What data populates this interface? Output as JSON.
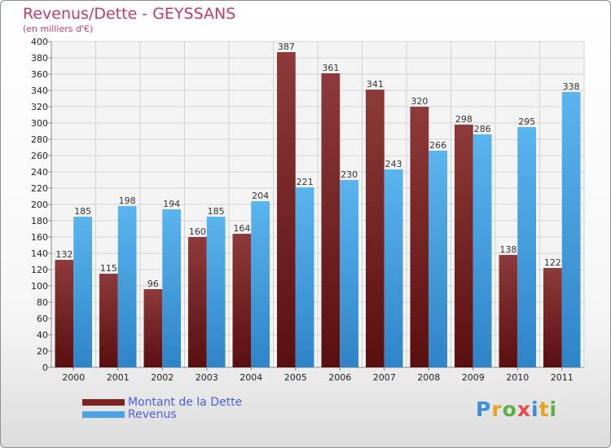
{
  "header": {
    "title": "Revenus/Dette - GEYSSANS",
    "subtitle": "(en milliers d'€)"
  },
  "chart_data": {
    "type": "bar",
    "title": "Revenus/Dette - GEYSSANS",
    "ylabel": "(en milliers d'€)",
    "xlabel": "",
    "categories": [
      "2000",
      "2001",
      "2002",
      "2003",
      "2004",
      "2005",
      "2006",
      "2007",
      "2008",
      "2009",
      "2010",
      "2011"
    ],
    "series": [
      {
        "name": "Montant de la Dette",
        "color": "#7a2424",
        "values": [
          132,
          115,
          96,
          160,
          164,
          387,
          361,
          341,
          320,
          298,
          138,
          122
        ]
      },
      {
        "name": "Revenus",
        "color": "#4aa3e3",
        "values": [
          185,
          198,
          194,
          185,
          204,
          221,
          230,
          243,
          266,
          286,
          295,
          338
        ]
      }
    ],
    "ylim": [
      0,
      400
    ],
    "ytick_step": 20,
    "grid": true,
    "legend": "bottom-left"
  },
  "legend": {
    "items": [
      {
        "label": "Montant de la Dette",
        "color": "#7a2424"
      },
      {
        "label": "Revenus",
        "color": "#4aa3e3"
      }
    ]
  },
  "logo": {
    "text": "Proxiti",
    "colors": [
      "#3c8ed8",
      "#e8a21e",
      "#5bb045",
      "#e84a4a",
      "#3c8ed8",
      "#e8a21e",
      "#5bb045"
    ]
  }
}
